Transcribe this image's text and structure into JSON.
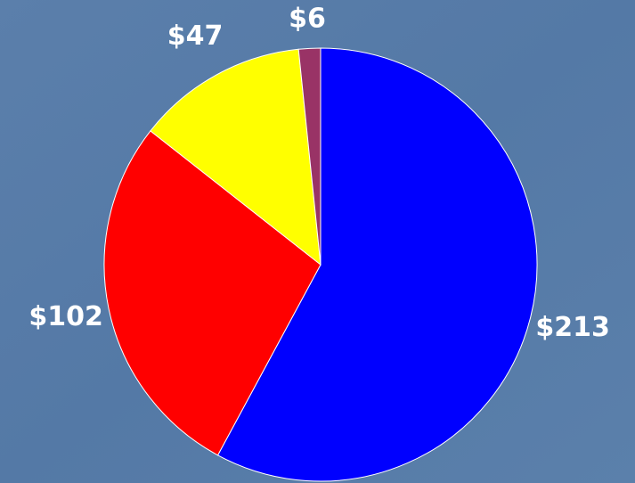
{
  "chart_data": {
    "type": "pie",
    "values": [
      213,
      102,
      47,
      6
    ],
    "value_labels": [
      "$213",
      "$102",
      "$47",
      "$6"
    ],
    "colors": [
      "#0000ff",
      "#ff0000",
      "#ffff00",
      "#993366"
    ]
  }
}
